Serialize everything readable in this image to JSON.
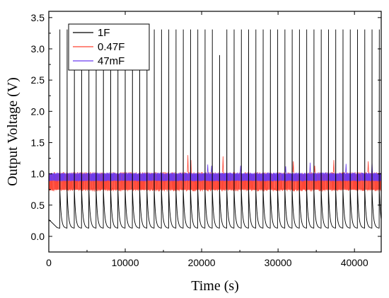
{
  "chart_data": {
    "type": "line",
    "title": "",
    "xlabel": "Time (s)",
    "ylabel": "Output Voltage (V)",
    "xlim": [
      0,
      43500
    ],
    "ylim": [
      -0.25,
      3.6
    ],
    "xticks": [
      0,
      10000,
      20000,
      30000,
      40000
    ],
    "yticks": [
      0.0,
      0.5,
      1.0,
      1.5,
      2.0,
      2.5,
      3.0,
      3.5
    ],
    "ytick_labels": [
      "0.0",
      "0.5",
      "1.0",
      "1.5",
      "2.0",
      "2.5",
      "3.0",
      "3.5"
    ],
    "grid": false,
    "legend": "top-left",
    "series": [
      {
        "name": "1F",
        "color": "#000000",
        "pattern": "sawtooth",
        "period_s": 950,
        "first_peak_s": 1450,
        "peak_v": 3.31,
        "reset_v": 0.72,
        "floor_v": 0.13,
        "start_v": 0.27,
        "low_peak": {
          "x": 22400,
          "v": 2.9
        }
      },
      {
        "name": "0.47F",
        "color": "#ff4433",
        "pattern": "noisy-band",
        "band_v": [
          0.72,
          1.03
        ],
        "spikes": [
          {
            "x": 18200,
            "v": 1.3
          },
          {
            "x": 18600,
            "v": 1.22
          },
          {
            "x": 22800,
            "v": 1.28
          },
          {
            "x": 32000,
            "v": 1.2
          },
          {
            "x": 34800,
            "v": 1.13
          },
          {
            "x": 37300,
            "v": 1.22
          },
          {
            "x": 41800,
            "v": 1.2
          }
        ]
      },
      {
        "name": "47mF",
        "color": "#6a3cf0",
        "pattern": "noisy-band",
        "band_v": [
          0.88,
          1.02
        ],
        "spikes": [
          {
            "x": 20800,
            "v": 1.15
          },
          {
            "x": 21300,
            "v": 1.13
          },
          {
            "x": 25100,
            "v": 1.13
          },
          {
            "x": 31000,
            "v": 1.12
          },
          {
            "x": 34200,
            "v": 1.18
          },
          {
            "x": 38900,
            "v": 1.16
          },
          {
            "x": 42300,
            "v": 1.2
          }
        ]
      }
    ]
  }
}
